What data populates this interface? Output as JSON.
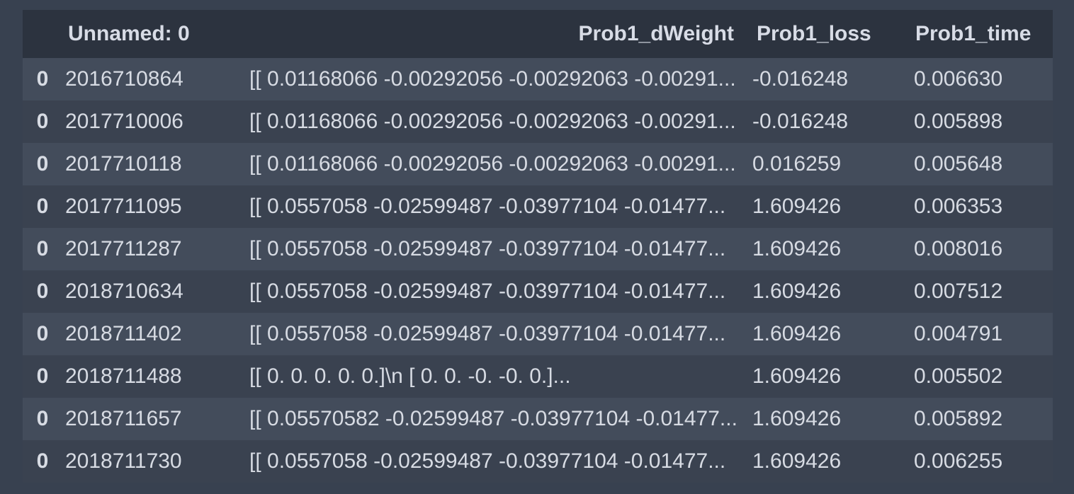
{
  "table": {
    "columns": {
      "index": "",
      "unnamed": "Unnamed: 0",
      "dweight": "Prob1_dWeight",
      "loss": "Prob1_loss",
      "time": "Prob1_time"
    },
    "rows": [
      {
        "index": "0",
        "unnamed": "2016710864",
        "dweight": "[[ 0.01168066 -0.00292056 -0.00292063 -0.00291...",
        "loss": "-0.016248",
        "time": "0.006630"
      },
      {
        "index": "0",
        "unnamed": "2017710006",
        "dweight": "[[ 0.01168066 -0.00292056 -0.00292063 -0.00291...",
        "loss": "-0.016248",
        "time": "0.005898"
      },
      {
        "index": "0",
        "unnamed": "2017710118",
        "dweight": "[[ 0.01168066 -0.00292056 -0.00292063 -0.00291...",
        "loss": "0.016259",
        "time": "0.005648"
      },
      {
        "index": "0",
        "unnamed": "2017711095",
        "dweight": "[[ 0.0557058 -0.02599487 -0.03977104 -0.01477...",
        "loss": "1.609426",
        "time": "0.006353"
      },
      {
        "index": "0",
        "unnamed": "2017711287",
        "dweight": "[[ 0.0557058 -0.02599487 -0.03977104 -0.01477...",
        "loss": "1.609426",
        "time": "0.008016"
      },
      {
        "index": "0",
        "unnamed": "2018710634",
        "dweight": "[[ 0.0557058 -0.02599487 -0.03977104 -0.01477...",
        "loss": "1.609426",
        "time": "0.007512"
      },
      {
        "index": "0",
        "unnamed": "2018711402",
        "dweight": "[[ 0.0557058 -0.02599487 -0.03977104 -0.01477...",
        "loss": "1.609426",
        "time": "0.004791"
      },
      {
        "index": "0",
        "unnamed": "2018711488",
        "dweight": "[[ 0. 0. 0. 0. 0.]\\n [ 0. 0. -0. -0. 0.]...",
        "loss": "1.609426",
        "time": "0.005502"
      },
      {
        "index": "0",
        "unnamed": "2018711657",
        "dweight": "[[ 0.05570582 -0.02599487 -0.03977104 -0.01477...",
        "loss": "1.609426",
        "time": "0.005892"
      },
      {
        "index": "0",
        "unnamed": "2018711730",
        "dweight": "[[ 0.0557058 -0.02599487 -0.03977104 -0.01477...",
        "loss": "1.609426",
        "time": "0.006255"
      }
    ]
  }
}
